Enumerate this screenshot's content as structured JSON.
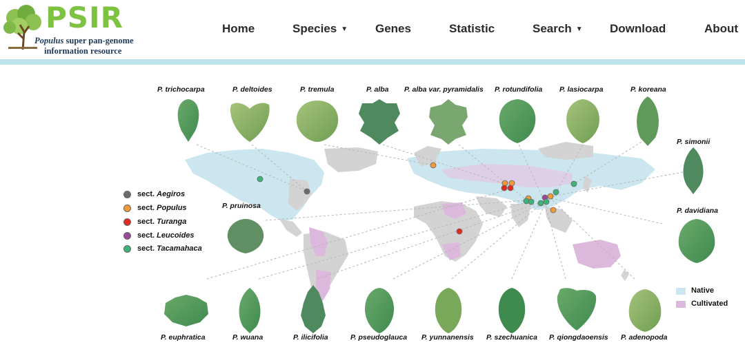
{
  "logo": {
    "word": "PSIR",
    "subtitle_italic": "Populus",
    "subtitle_rest": " super pan-genome",
    "subtitle_line2": "information resource"
  },
  "nav": {
    "home": "Home",
    "species": "Species",
    "genes": "Genes",
    "statistic": "Statistic",
    "search": "Search",
    "download": "Download",
    "about": "About"
  },
  "legend_sections": [
    {
      "prefix": "sect. ",
      "name": "Aegiros",
      "color": "#6b6b6b"
    },
    {
      "prefix": "sect. ",
      "name": "Populus",
      "color": "#f09a3a"
    },
    {
      "prefix": "sect. ",
      "name": "Turanga",
      "color": "#e02a22"
    },
    {
      "prefix": "sect. ",
      "name": "Leucoides",
      "color": "#9b4a9b"
    },
    {
      "prefix": "sect. ",
      "name": "Tacamahaca",
      "color": "#3db37a"
    }
  ],
  "legend_regions": [
    {
      "label": "Native",
      "color": "#cbe6ee"
    },
    {
      "label": "Cultivated",
      "color": "#ddb8dd"
    }
  ],
  "species": {
    "trichocarpa": "P. trichocarpa",
    "deltoides": "P. deltoides",
    "tremula": "P. tremula",
    "alba": "P. alba",
    "pyramidalis": "P. alba var. pyramidalis",
    "rotundifolia": "P. rotundifolia",
    "lasiocarpa": "P. lasiocarpa",
    "koreana": "P. koreana",
    "simonii": "P. simonii",
    "pruinosa": "P. pruinosa",
    "davidiana": "P. davidiana",
    "euphratica": "P. euphratica",
    "wuana": "P. wuana",
    "ilicifolia": "P. ilicifolia",
    "pseudoglauca": "P. pseudoglauca",
    "yunnanensis": "P. yunnanensis",
    "szechuanica": "P. szechuanica",
    "qiongdaoensis": "P. qiongdaoensis",
    "adenopoda": "P. adenopoda"
  }
}
